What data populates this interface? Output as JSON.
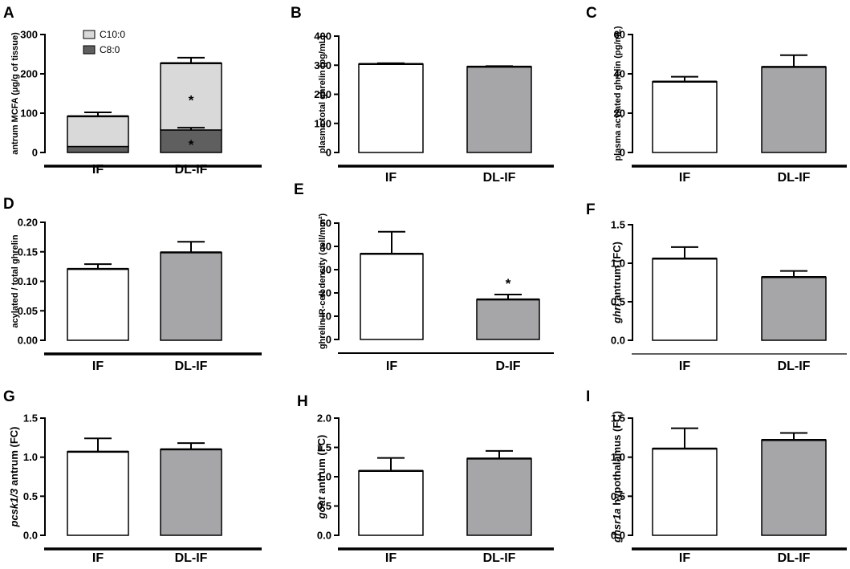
{
  "chart_data": [
    {
      "panel": "A",
      "type": "bar",
      "stacked": true,
      "ylabel": "antrum MCFA (µg/g of tissue)",
      "ylim": [
        0,
        300
      ],
      "yticks": [
        "0",
        "100",
        "200",
        "300"
      ],
      "categories": [
        "IF",
        "DL-IF"
      ],
      "legend": [
        "C10:0",
        "C8:0"
      ],
      "series": [
        {
          "name": "C8:0",
          "values": [
            15,
            57
          ],
          "errors": [
            0,
            6
          ],
          "color": "#5f5f5f",
          "annotations": [
            "",
            "*"
          ]
        },
        {
          "name": "C10:0",
          "values": [
            77,
            170
          ],
          "errors": [
            10,
            14
          ],
          "color": "#d9d9d9",
          "annotations": [
            "",
            "*"
          ]
        }
      ]
    },
    {
      "panel": "B",
      "type": "bar",
      "ylabel": "plasma total ghrelin (pg/mL)",
      "ylim": [
        0,
        400
      ],
      "yticks": [
        "0",
        "100",
        "200",
        "300",
        "400"
      ],
      "categories": [
        "IF",
        "DL-IF"
      ],
      "values": [
        304,
        295
      ],
      "errors": [
        3,
        2
      ],
      "colors": [
        "#ffffff",
        "#a6a6a9"
      ]
    },
    {
      "panel": "C",
      "type": "bar",
      "ylabel": "plasma acylated ghrelin (pg/mL)",
      "ylim": [
        0,
        60
      ],
      "yticks": [
        "0",
        "20",
        "40",
        "60"
      ],
      "categories": [
        "IF",
        "DL-IF"
      ],
      "values": [
        36,
        43.5
      ],
      "errors": [
        2.5,
        6
      ],
      "colors": [
        "#ffffff",
        "#a6a6a9"
      ]
    },
    {
      "panel": "D",
      "type": "bar",
      "ylabel": "acylated / total ghrelin",
      "ylim": [
        0,
        0.2
      ],
      "yticks": [
        "0.00",
        "0.05",
        "0.10",
        "0.15",
        "0.20"
      ],
      "categories": [
        "IF",
        "DL-IF"
      ],
      "values": [
        0.121,
        0.149
      ],
      "errors": [
        0.008,
        0.018
      ],
      "colors": [
        "#ffffff",
        "#a6a6a9"
      ]
    },
    {
      "panel": "E",
      "type": "bar",
      "ylabel": "ghrelin IR-cell density (cell/mm²)",
      "ylim": [
        0,
        50
      ],
      "yticks": [
        "0",
        "10",
        "20",
        "30",
        "40",
        "50"
      ],
      "categories": [
        "IF",
        "D-IF"
      ],
      "values": [
        36.8,
        17.2
      ],
      "errors": [
        9.5,
        2.1
      ],
      "colors": [
        "#ffffff",
        "#a6a6a9"
      ],
      "annotations": [
        "",
        "*"
      ]
    },
    {
      "panel": "F",
      "type": "bar",
      "ylabel_italic": "ghrl",
      "ylabel": " antrum (FC)",
      "ylim": [
        0,
        1.5
      ],
      "yticks": [
        "0.0",
        "0.5",
        "1.0",
        "1.5"
      ],
      "categories": [
        "IF",
        "DL-IF"
      ],
      "values": [
        1.06,
        0.82
      ],
      "errors": [
        0.15,
        0.08
      ],
      "colors": [
        "#ffffff",
        "#a6a6a9"
      ]
    },
    {
      "panel": "G",
      "type": "bar",
      "ylabel_italic": "pcsk1/3",
      "ylabel": " antrum (FC)",
      "ylim": [
        0,
        1.5
      ],
      "yticks": [
        "0.0",
        "0.5",
        "1.0",
        "1.5"
      ],
      "categories": [
        "IF",
        "DL-IF"
      ],
      "values": [
        1.07,
        1.1
      ],
      "errors": [
        0.17,
        0.08
      ],
      "colors": [
        "#ffffff",
        "#a6a6a9"
      ]
    },
    {
      "panel": "H",
      "type": "bar",
      "ylabel_italic": "goat",
      "ylabel": " antrum (FC)",
      "ylim": [
        0,
        2.0
      ],
      "yticks": [
        "0.0",
        "0.5",
        "1.0",
        "1.5",
        "2.0"
      ],
      "categories": [
        "IF",
        "DL-IF"
      ],
      "values": [
        1.1,
        1.31
      ],
      "errors": [
        0.22,
        0.13
      ],
      "colors": [
        "#ffffff",
        "#a6a6a9"
      ]
    },
    {
      "panel": "I",
      "type": "bar",
      "ylabel_italic": "ghsr1a",
      "ylabel": " hypothalamus (FC)",
      "ylim": [
        0,
        1.5
      ],
      "yticks": [
        "0.0",
        "0.5",
        "1.0",
        "1.5"
      ],
      "categories": [
        "IF",
        "DL-IF"
      ],
      "values": [
        1.11,
        1.22
      ],
      "errors": [
        0.26,
        0.09
      ],
      "colors": [
        "#ffffff",
        "#a6a6a9"
      ]
    }
  ]
}
